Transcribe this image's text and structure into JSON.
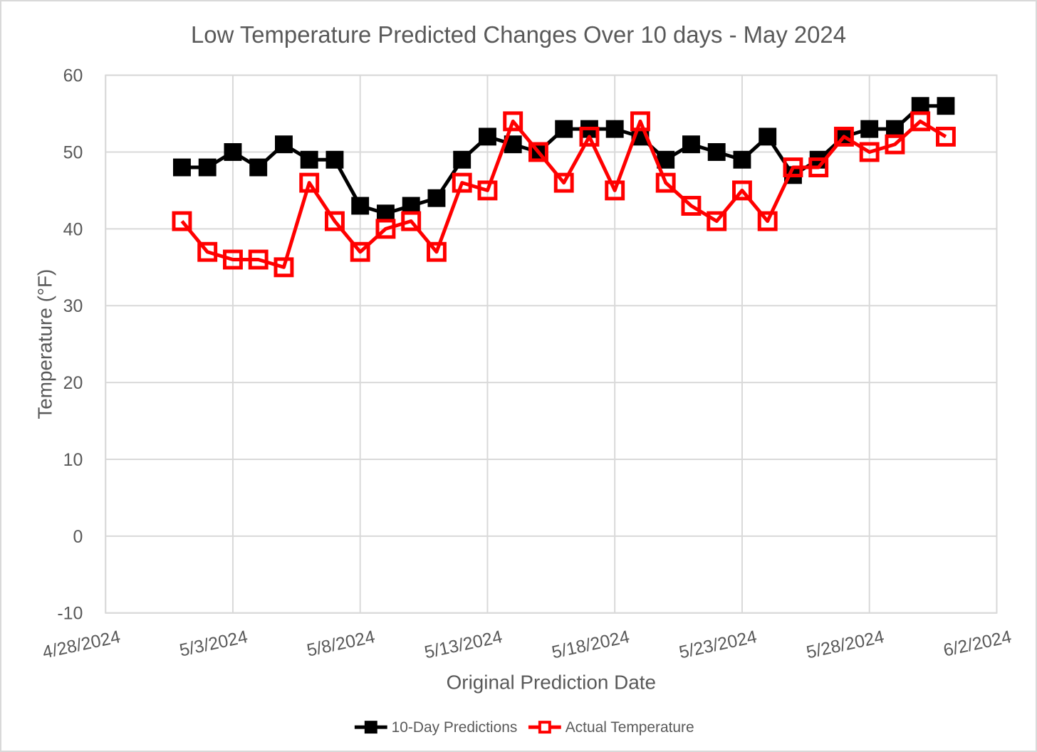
{
  "chart_data": {
    "type": "line",
    "title": "Low Temperature Predicted Changes Over 10 days - May 2024",
    "xlabel": "Original Prediction Date",
    "ylabel": "Temperature (°F)",
    "grid": true,
    "legend_position": "bottom-center",
    "x_axis": {
      "tick_labels": [
        "4/28/2024",
        "5/3/2024",
        "5/8/2024",
        "5/13/2024",
        "5/18/2024",
        "5/23/2024",
        "5/28/2024",
        "6/2/2024"
      ],
      "tick_day_offsets": [
        0,
        5,
        10,
        15,
        20,
        25,
        30,
        35
      ],
      "range_days": [
        0,
        35
      ],
      "tick_label_rotation_deg": -12
    },
    "y_axis": {
      "ticks": [
        60,
        50,
        40,
        30,
        20,
        10,
        0,
        -10
      ],
      "range": [
        -10,
        60
      ]
    },
    "first_point_day_offset": 3,
    "point_dates": [
      "5/1/2024",
      "5/2/2024",
      "5/3/2024",
      "5/4/2024",
      "5/5/2024",
      "5/6/2024",
      "5/7/2024",
      "5/8/2024",
      "5/9/2024",
      "5/10/2024",
      "5/11/2024",
      "5/12/2024",
      "5/13/2024",
      "5/14/2024",
      "5/15/2024",
      "5/16/2024",
      "5/17/2024",
      "5/18/2024",
      "5/19/2024",
      "5/20/2024",
      "5/21/2024",
      "5/22/2024",
      "5/23/2024",
      "5/24/2024",
      "5/25/2024",
      "5/26/2024",
      "5/27/2024",
      "5/28/2024",
      "5/29/2024",
      "5/30/2024",
      "5/31/2024"
    ],
    "series": [
      {
        "name": "10-Day Predictions",
        "color": "#000000",
        "marker": "filled-square",
        "values": [
          48,
          48,
          50,
          48,
          51,
          49,
          49,
          43,
          42,
          43,
          44,
          49,
          52,
          51,
          50,
          53,
          53,
          53,
          52,
          49,
          51,
          50,
          49,
          52,
          47,
          49,
          52,
          53,
          53,
          56,
          56
        ]
      },
      {
        "name": "Actual Temperature",
        "color": "#FF0000",
        "marker": "open-square",
        "values": [
          41,
          37,
          36,
          36,
          35,
          46,
          41,
          37,
          40,
          41,
          37,
          46,
          45,
          54,
          50,
          46,
          52,
          45,
          54,
          46,
          43,
          41,
          45,
          41,
          48,
          48,
          52,
          50,
          51,
          54,
          52
        ]
      }
    ]
  },
  "styles": {
    "text_color": "#595959",
    "grid_color": "#D9D9D9",
    "background": "#FFFFFF"
  }
}
